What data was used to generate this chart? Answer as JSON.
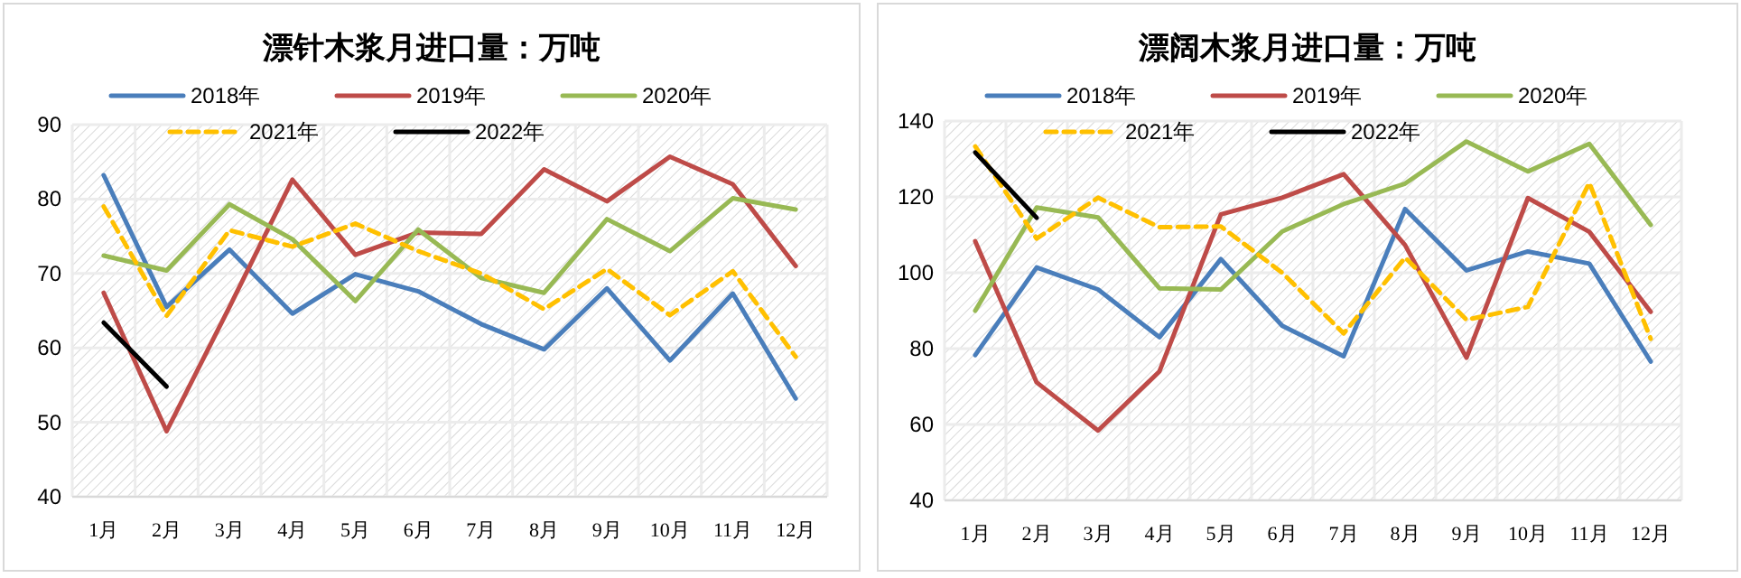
{
  "chart_data": [
    {
      "type": "line",
      "title": "漂针木浆月进口量：万吨",
      "categories": [
        "1月",
        "2月",
        "3月",
        "4月",
        "5月",
        "6月",
        "7月",
        "8月",
        "9月",
        "10月",
        "11月",
        "12月"
      ],
      "ylim": [
        40,
        90
      ],
      "yticks": [
        40,
        50,
        60,
        70,
        80,
        90
      ],
      "grid": true,
      "legend": "top",
      "series": [
        {
          "name": "2018年",
          "color": "#4a7ebb",
          "values": [
            83.2,
            65.5,
            73.2,
            64.6,
            69.9,
            67.6,
            63.2,
            59.8,
            68.0,
            58.3,
            67.3,
            53.2
          ]
        },
        {
          "name": "2019年",
          "color": "#be4b48",
          "values": [
            67.4,
            48.8,
            65.5,
            82.6,
            72.5,
            75.5,
            75.3,
            84.0,
            79.7,
            85.7,
            82.0,
            71.0
          ]
        },
        {
          "name": "2020年",
          "color": "#98b954",
          "values": [
            72.4,
            70.4,
            79.3,
            74.6,
            66.3,
            75.9,
            69.4,
            67.4,
            77.3,
            73.0,
            80.1,
            78.6
          ]
        },
        {
          "name": "2021年",
          "color": "#ffc000",
          "line_style": "dashed",
          "values": [
            79.0,
            64.3,
            75.8,
            73.6,
            76.7,
            73.0,
            70.0,
            65.2,
            70.6,
            64.4,
            70.3,
            58.8
          ]
        },
        {
          "name": "2022年",
          "color": "#000000",
          "values": [
            63.4,
            54.8,
            null,
            null,
            null,
            null,
            null,
            null,
            null,
            null,
            null,
            null
          ]
        }
      ]
    },
    {
      "type": "line",
      "title": "漂阔木浆月进口量：万吨",
      "categories": [
        "1月",
        "2月",
        "3月",
        "4月",
        "5月",
        "6月",
        "7月",
        "8月",
        "9月",
        "10月",
        "11月",
        "12月"
      ],
      "ylim": [
        40,
        140
      ],
      "yticks": [
        40,
        60,
        80,
        100,
        120,
        140
      ],
      "grid": true,
      "legend": "top",
      "series": [
        {
          "name": "2018年",
          "color": "#4a7ebb",
          "values": [
            78.3,
            101.4,
            95.6,
            83.0,
            103.6,
            86.0,
            78.0,
            116.8,
            100.6,
            105.6,
            102.4,
            76.6
          ]
        },
        {
          "name": "2019年",
          "color": "#be4b48",
          "values": [
            108.3,
            71.1,
            58.4,
            74.0,
            115.4,
            119.8,
            126.0,
            107.3,
            77.6,
            119.7,
            110.8,
            89.7
          ]
        },
        {
          "name": "2020年",
          "color": "#98b954",
          "values": [
            90.0,
            117.2,
            114.6,
            95.9,
            95.6,
            110.9,
            118.1,
            123.5,
            134.6,
            126.7,
            134.0,
            112.6
          ]
        },
        {
          "name": "2021年",
          "color": "#ffc000",
          "line_style": "dashed",
          "values": [
            133.3,
            109.0,
            119.8,
            112.0,
            112.2,
            100.0,
            84.0,
            104.0,
            87.6,
            91.0,
            123.7,
            82.6
          ]
        },
        {
          "name": "2022年",
          "color": "#000000",
          "values": [
            131.7,
            114.5,
            null,
            null,
            null,
            null,
            null,
            null,
            null,
            null,
            null,
            null
          ]
        }
      ]
    }
  ]
}
